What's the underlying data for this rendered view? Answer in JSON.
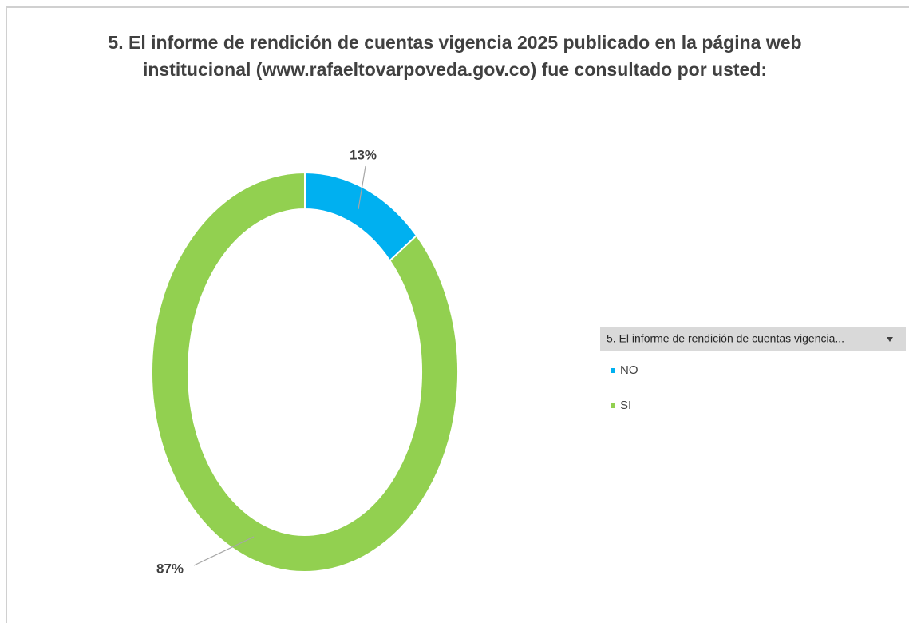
{
  "chart_data": {
    "type": "donut",
    "title": "5. El informe de rendición de cuentas vigencia 2025 publicado en la página web institucional (www.rafaeltovarpoveda.gov.co) fue consultado por usted:",
    "legend_title": "5. El informe de rendición de cuentas vigencia...",
    "categories": [
      "NO",
      "SI"
    ],
    "values": [
      13,
      87
    ],
    "value_labels": [
      "13%",
      "87%"
    ],
    "colors": [
      "#00b0f0",
      "#92d050"
    ],
    "legend": "right"
  }
}
